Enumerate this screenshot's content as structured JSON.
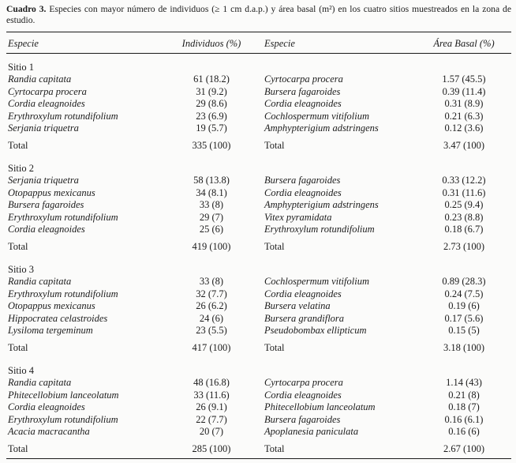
{
  "caption": {
    "label": "Cuadro 3.",
    "text": " Especies con mayor número de individuos (≥ 1 cm d.a.p.) y área basal (m²) en los cuatro sitios muestreados en la zona de estudio."
  },
  "headers": {
    "especie_left": "Especie",
    "individuos": "Individuos (%)",
    "especie_right": "Especie",
    "area_basal": "Área Basal (%)"
  },
  "total_label": "Total",
  "sites": [
    {
      "name": "Sitio 1",
      "rows": [
        {
          "sp1": "Randia capitata",
          "ind": "61 (18.2)",
          "sp2": "Cyrtocarpa procera",
          "ab": "1.57 (45.5)"
        },
        {
          "sp1": "Cyrtocarpa procera",
          "ind": "31 (9.2)",
          "sp2": "Bursera fagaroides",
          "ab": "0.39 (11.4)"
        },
        {
          "sp1": "Cordia eleagnoides",
          "ind": "29 (8.6)",
          "sp2": "Cordia eleagnoides",
          "ab": "0.31 (8.9)"
        },
        {
          "sp1": "Erythroxylum rotundifolium",
          "ind": "23 (6.9)",
          "sp2": "Cochlospermum vitifolium",
          "ab": "0.21 (6.3)"
        },
        {
          "sp1": "Serjania triquetra",
          "ind": "19 (5.7)",
          "sp2": "Amphypterigium adstringens",
          "ab": "0.12 (3.6)"
        }
      ],
      "total": {
        "ind": "335 (100)",
        "ab": "3.47 (100)"
      }
    },
    {
      "name": "Sitio 2",
      "rows": [
        {
          "sp1": "Serjania triquetra",
          "ind": "58 (13.8)",
          "sp2": "Bursera fagaroides",
          "ab": "0.33 (12.2)"
        },
        {
          "sp1": "Otopappus mexicanus",
          "ind": "34 (8.1)",
          "sp2": "Cordia eleagnoides",
          "ab": "0.31 (11.6)"
        },
        {
          "sp1": "Bursera fagaroides",
          "ind": "33 (8)",
          "sp2": "Amphypterigium adstringens",
          "ab": "0.25 (9.4)"
        },
        {
          "sp1": "Erythroxylum rotundifolium",
          "ind": "29 (7)",
          "sp2": "Vitex pyramidata",
          "ab": "0.23 (8.8)"
        },
        {
          "sp1": "Cordia eleagnoides",
          "ind": "25 (6)",
          "sp2": "Erythroxylum rotundifolium",
          "ab": "0.18 (6.7)"
        }
      ],
      "total": {
        "ind": "419 (100)",
        "ab": "2.73 (100)"
      }
    },
    {
      "name": "Sitio 3",
      "rows": [
        {
          "sp1": "Randia capitata",
          "ind": "33 (8)",
          "sp2": "Cochlospermum vitifolium",
          "ab": "0.89 (28.3)"
        },
        {
          "sp1": "Erythroxylum rotundifolium",
          "ind": "32 (7.7)",
          "sp2": "Cordia eleagnoides",
          "ab": "0.24 (7.5)"
        },
        {
          "sp1": "Otopappus mexicanus",
          "ind": "26 (6.2)",
          "sp2": "Bursera velatina",
          "ab": "0.19 (6)"
        },
        {
          "sp1": "Hippocratea celastroides",
          "ind": "24 (6)",
          "sp2": "Bursera grandiflora",
          "ab": "0.17 (5.6)"
        },
        {
          "sp1": "Lysiloma tergeminum",
          "ind": "23 (5.5)",
          "sp2": "Pseudobombax ellipticum",
          "ab": "0.15 (5)"
        }
      ],
      "total": {
        "ind": "417 (100)",
        "ab": "3.18 (100)"
      }
    },
    {
      "name": "Sitio 4",
      "rows": [
        {
          "sp1": "Randia capitata",
          "ind": "48 (16.8)",
          "sp2": "Cyrtocarpa procera",
          "ab": "1.14 (43)"
        },
        {
          "sp1": "Phitecellobium lanceolatum",
          "ind": "33 (11.6)",
          "sp2": "Cordia eleagnoides",
          "ab": "0.21 (8)"
        },
        {
          "sp1": "Cordia eleagnoides",
          "ind": "26 (9.1)",
          "sp2": "Phitecellobium lanceolatum",
          "ab": "0.18 (7)"
        },
        {
          "sp1": "Erythroxylum rotundifolium",
          "ind": "22 (7.7)",
          "sp2": "Bursera fagaroides",
          "ab": "0.16 (6.1)"
        },
        {
          "sp1": "Acacia macracantha",
          "ind": "20 (7)",
          "sp2": "Apoplanesia paniculata",
          "ab": "0.16 (6)"
        }
      ],
      "total": {
        "ind": "285 (100)",
        "ab": "2.67 (100)"
      }
    }
  ]
}
